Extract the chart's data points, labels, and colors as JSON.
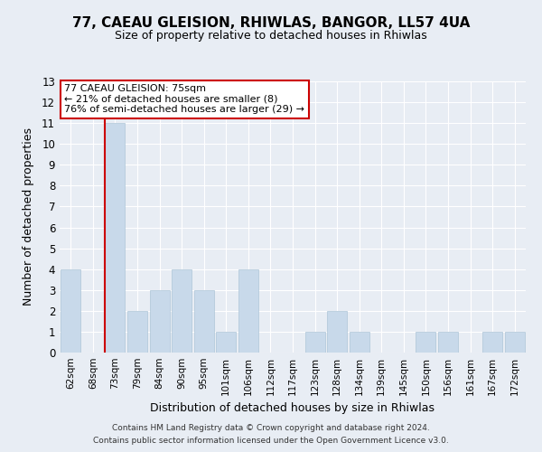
{
  "title": "77, CAEAU GLEISION, RHIWLAS, BANGOR, LL57 4UA",
  "subtitle": "Size of property relative to detached houses in Rhiwlas",
  "xlabel": "Distribution of detached houses by size in Rhiwlas",
  "ylabel": "Number of detached properties",
  "categories": [
    "62sqm",
    "68sqm",
    "73sqm",
    "79sqm",
    "84sqm",
    "90sqm",
    "95sqm",
    "101sqm",
    "106sqm",
    "112sqm",
    "117sqm",
    "123sqm",
    "128sqm",
    "134sqm",
    "139sqm",
    "145sqm",
    "150sqm",
    "156sqm",
    "161sqm",
    "167sqm",
    "172sqm"
  ],
  "values": [
    4,
    0,
    11,
    2,
    3,
    4,
    3,
    1,
    4,
    0,
    0,
    1,
    2,
    1,
    0,
    0,
    1,
    1,
    0,
    1,
    1
  ],
  "bar_color": "#c8d9ea",
  "bar_edge_color": "#aec6d8",
  "highlight_index": 2,
  "highlight_line_color": "#cc0000",
  "ylim": [
    0,
    13
  ],
  "yticks": [
    0,
    1,
    2,
    3,
    4,
    5,
    6,
    7,
    8,
    9,
    10,
    11,
    12,
    13
  ],
  "annotation_title": "77 CAEAU GLEISION: 75sqm",
  "annotation_line1": "← 21% of detached houses are smaller (8)",
  "annotation_line2": "76% of semi-detached houses are larger (29) →",
  "annotation_box_color": "#ffffff",
  "annotation_box_edge": "#cc0000",
  "bg_color": "#e8edf4",
  "footnote1": "Contains HM Land Registry data © Crown copyright and database right 2024.",
  "footnote2": "Contains public sector information licensed under the Open Government Licence v3.0."
}
